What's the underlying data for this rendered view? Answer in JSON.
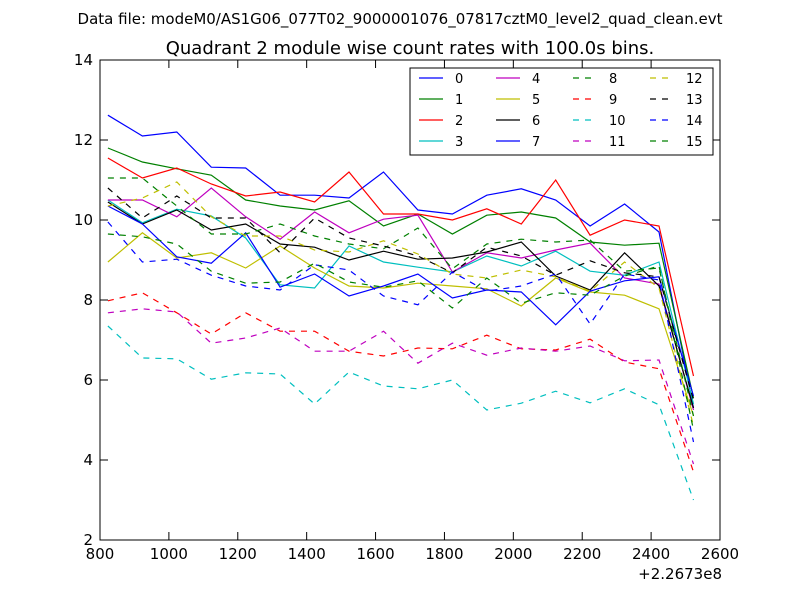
{
  "figure": {
    "suptitle": "Data file: modeM0/AS1G06_077T02_9000001076_07817cztM0_level2_quad_clean.evt"
  },
  "chart_data": {
    "type": "line",
    "title": "Quadrant 2 module wise count rates with 100.0s bins.",
    "xlabel": "",
    "ylabel": "",
    "x_offset_label": "+2.2673e8",
    "xlim": [
      800,
      2600
    ],
    "ylim": [
      2,
      14
    ],
    "xticks": [
      800,
      1000,
      1200,
      1400,
      1600,
      1800,
      2000,
      2200,
      2400,
      2600
    ],
    "yticks": [
      2,
      4,
      6,
      8,
      10,
      12,
      14
    ],
    "grid": false,
    "legend": {
      "placement": "top-right",
      "columns": 4
    },
    "x": [
      823,
      923,
      1023,
      1123,
      1223,
      1323,
      1423,
      1523,
      1623,
      1723,
      1823,
      1923,
      2023,
      2123,
      2223,
      2323,
      2423,
      2523
    ],
    "series": [
      {
        "name": "0",
        "color": "#0000ff",
        "dash": "solid",
        "values": [
          12.62,
          12.1,
          12.2,
          11.32,
          11.3,
          10.62,
          10.62,
          10.55,
          11.2,
          10.25,
          10.15,
          10.62,
          10.78,
          10.5,
          9.85,
          10.4,
          9.7,
          5.3
        ]
      },
      {
        "name": "1",
        "color": "#008000",
        "dash": "solid",
        "values": [
          11.8,
          11.45,
          11.28,
          11.12,
          10.5,
          10.35,
          10.25,
          10.48,
          9.85,
          10.15,
          9.65,
          10.12,
          10.2,
          10.05,
          9.45,
          9.37,
          9.42,
          5.55
        ]
      },
      {
        "name": "2",
        "color": "#ff0000",
        "dash": "solid",
        "values": [
          11.55,
          11.05,
          11.3,
          10.9,
          10.6,
          10.7,
          10.45,
          11.2,
          10.15,
          10.15,
          10.0,
          10.28,
          9.9,
          11.0,
          9.62,
          10.0,
          9.85,
          6.1
        ]
      },
      {
        "name": "3",
        "color": "#00bfbf",
        "dash": "solid",
        "values": [
          10.5,
          9.93,
          10.27,
          10.1,
          9.55,
          8.38,
          8.3,
          9.35,
          8.95,
          8.82,
          8.7,
          9.1,
          8.85,
          9.22,
          8.72,
          8.62,
          8.95,
          5.4
        ]
      },
      {
        "name": "4",
        "color": "#bf00bf",
        "dash": "solid",
        "values": [
          10.5,
          10.5,
          10.08,
          10.8,
          10.08,
          9.52,
          10.2,
          9.68,
          10.02,
          10.12,
          8.7,
          9.18,
          9.05,
          9.25,
          9.42,
          8.55,
          8.4,
          5.25
        ]
      },
      {
        "name": "5",
        "color": "#bfbf00",
        "dash": "solid",
        "values": [
          8.95,
          9.68,
          9.05,
          9.18,
          8.8,
          9.35,
          8.8,
          8.35,
          8.3,
          8.42,
          8.35,
          8.28,
          7.85,
          8.55,
          8.2,
          8.12,
          7.78,
          5.1
        ]
      },
      {
        "name": "6",
        "color": "#000000",
        "dash": "solid",
        "values": [
          10.45,
          9.9,
          10.25,
          9.75,
          9.9,
          9.4,
          9.32,
          9.0,
          9.22,
          9.02,
          9.05,
          9.2,
          9.45,
          8.6,
          8.25,
          9.18,
          8.35,
          5.3
        ]
      },
      {
        "name": "7",
        "color": "#0000ff",
        "dash": "solid",
        "values": [
          10.35,
          9.9,
          9.08,
          8.92,
          9.68,
          8.32,
          8.65,
          8.1,
          8.35,
          8.65,
          8.05,
          8.25,
          8.2,
          7.38,
          8.22,
          8.48,
          8.58,
          5.6
        ]
      },
      {
        "name": "8",
        "color": "#008000",
        "dash": "dashed",
        "values": [
          11.05,
          11.05,
          10.35,
          9.65,
          9.65,
          9.9,
          9.6,
          9.4,
          9.28,
          9.8,
          8.78,
          9.4,
          9.52,
          9.45,
          9.5,
          8.72,
          8.8,
          5.1
        ]
      },
      {
        "name": "9",
        "color": "#ff0000",
        "dash": "dashed",
        "values": [
          7.98,
          8.18,
          7.68,
          7.15,
          7.68,
          7.22,
          7.22,
          6.72,
          6.6,
          6.8,
          6.78,
          7.12,
          6.78,
          6.75,
          7.02,
          6.45,
          6.28,
          3.7
        ]
      },
      {
        "name": "10",
        "color": "#00bfbf",
        "dash": "dashed",
        "values": [
          7.35,
          6.55,
          6.53,
          6.02,
          6.18,
          6.15,
          5.4,
          6.2,
          5.85,
          5.78,
          6.0,
          5.25,
          5.42,
          5.72,
          5.43,
          5.78,
          5.38,
          3.0
        ]
      },
      {
        "name": "11",
        "color": "#bf00bf",
        "dash": "dashed",
        "values": [
          7.68,
          7.78,
          7.7,
          6.92,
          7.05,
          7.3,
          6.72,
          6.72,
          7.22,
          6.42,
          6.92,
          6.62,
          6.8,
          6.72,
          6.85,
          6.48,
          6.5,
          3.9
        ]
      },
      {
        "name": "12",
        "color": "#bfbf00",
        "dash": "dashed",
        "values": [
          10.35,
          10.55,
          10.95,
          10.08,
          9.6,
          9.6,
          9.25,
          9.2,
          9.48,
          9.15,
          8.65,
          8.55,
          8.75,
          8.58,
          8.22,
          8.95,
          8.3,
          4.85
        ]
      },
      {
        "name": "13",
        "color": "#000000",
        "dash": "dashed",
        "values": [
          10.8,
          10.05,
          10.6,
          10.05,
          10.05,
          9.18,
          10.05,
          9.55,
          9.35,
          9.1,
          8.68,
          9.32,
          9.1,
          8.62,
          8.98,
          8.68,
          8.58,
          5.5
        ]
      },
      {
        "name": "14",
        "color": "#0000ff",
        "dash": "dashed",
        "values": [
          9.95,
          8.95,
          9.02,
          8.62,
          8.35,
          8.25,
          8.88,
          8.75,
          8.1,
          7.88,
          8.7,
          8.22,
          8.35,
          8.65,
          7.4,
          8.65,
          8.5,
          4.45
        ]
      },
      {
        "name": "15",
        "color": "#008000",
        "dash": "dashed",
        "values": [
          9.65,
          9.58,
          9.4,
          8.72,
          8.42,
          8.45,
          8.92,
          8.45,
          8.32,
          8.48,
          7.8,
          8.55,
          7.92,
          8.18,
          8.12,
          8.6,
          8.85,
          4.75
        ]
      }
    ]
  }
}
